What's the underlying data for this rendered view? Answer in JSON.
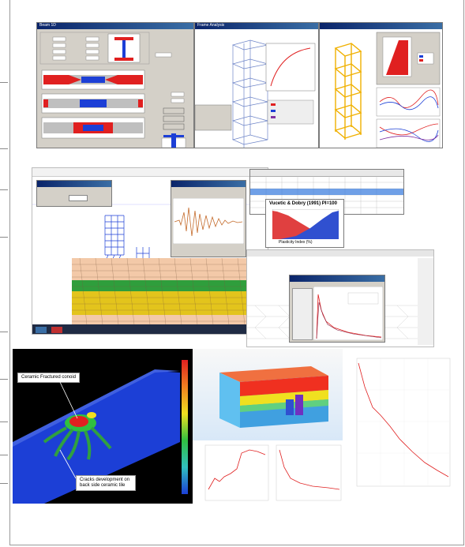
{
  "panel_top": {
    "beam_window_title": "Beam 1D",
    "frame_window_title": "Frame Analysis"
  },
  "panel_middle": {
    "spectrum_title": "Vucetic & Dobry (1991) PI=100",
    "spectrum_xlabel": "Plasticity Index (%)"
  },
  "panel_bottom": {
    "label_conoid": "Ceramic Fractured conoid",
    "label_cracks": "Cracks development on back side ceramic tile",
    "colors": {
      "blue": "#1c3fd6",
      "red": "#e02020",
      "green": "#30c040",
      "yellow": "#f0e020"
    }
  }
}
